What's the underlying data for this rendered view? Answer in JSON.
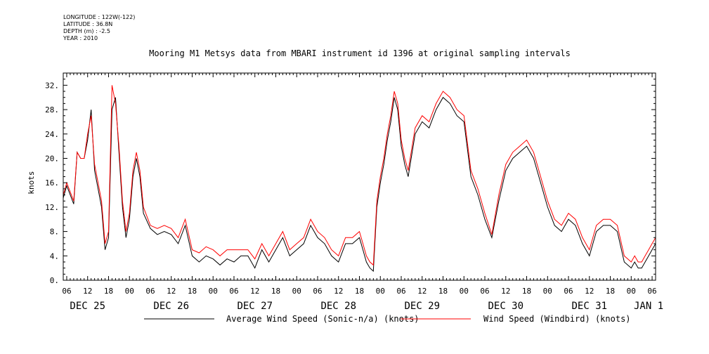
{
  "meta": {
    "longitude": "LONGITUDE : 122W(-122)",
    "latitude": "LATITUDE : 36.8N",
    "depth": "DEPTH (m) : -2.5",
    "year": "YEAR : 2010"
  },
  "chart_data": {
    "type": "line",
    "title": "Mooring M1 Metsys data from MBARI instrument id 1396 at original sampling intervals",
    "xlabel": "",
    "ylabel": "knots",
    "ylim": [
      0,
      34
    ],
    "yticks": [
      "0.",
      "4.",
      "8.",
      "12.",
      "16.",
      "20.",
      "24.",
      "28.",
      "32."
    ],
    "hour_ticks": [
      "06",
      "12",
      "18",
      "00",
      "06",
      "12",
      "18",
      "00",
      "06",
      "12",
      "18",
      "00",
      "06",
      "12",
      "18",
      "00",
      "06",
      "12",
      "18",
      "00",
      "06",
      "12",
      "18",
      "00",
      "06",
      "12",
      "18",
      "00",
      "06"
    ],
    "day_labels": [
      "DEC 25",
      "DEC 26",
      "DEC 27",
      "DEC 28",
      "DEC 29",
      "DEC 30",
      "DEC 31",
      "JAN 1"
    ],
    "x_units": "hours since 2010-12-25 00:00",
    "xlim": [
      5,
      175
    ],
    "grid": false,
    "series": [
      {
        "name": "Average Wind Speed (Sonic-n/a) (knots)",
        "color": "#000000",
        "x": [
          5,
          6,
          8,
          9,
          10,
          11,
          12,
          13,
          14,
          15,
          16,
          17,
          18,
          19,
          20,
          21,
          22,
          23,
          24,
          25,
          26,
          27,
          28,
          30,
          32,
          34,
          36,
          38,
          40,
          42,
          44,
          46,
          48,
          50,
          52,
          54,
          56,
          58,
          60,
          62,
          64,
          66,
          68,
          70,
          72,
          74,
          76,
          78,
          80,
          82,
          84,
          86,
          88,
          90,
          91,
          92,
          93,
          94,
          95,
          96,
          97,
          98,
          99,
          100,
          101,
          102,
          103,
          104,
          106,
          108,
          110,
          112,
          114,
          116,
          118,
          120,
          122,
          124,
          126,
          128,
          130,
          132,
          134,
          136,
          138,
          140,
          142,
          144,
          146,
          148,
          150,
          152,
          154,
          156,
          158,
          160,
          162,
          164,
          166,
          168,
          169,
          170,
          171,
          172,
          173,
          174,
          175
        ],
        "values": [
          13.5,
          15.5,
          12.5,
          21,
          20,
          20,
          23,
          28,
          18,
          15,
          12,
          5,
          7,
          28,
          30,
          21,
          12,
          7,
          10,
          17,
          20,
          17,
          11,
          8.5,
          7.5,
          8,
          7.5,
          6,
          9,
          4,
          3,
          4,
          3.5,
          2.5,
          3.5,
          3,
          4,
          4,
          2,
          5,
          3,
          5,
          7,
          4,
          5,
          6,
          9,
          7,
          6,
          4,
          3,
          6,
          6,
          7,
          5,
          3,
          2,
          1.5,
          12,
          16,
          19,
          23,
          26,
          30,
          28,
          22,
          19,
          17,
          24,
          26,
          25,
          28,
          30,
          29,
          27,
          26,
          17,
          14,
          10,
          7,
          13,
          18,
          20,
          21,
          22,
          20,
          16,
          12,
          9,
          8,
          10,
          9,
          6,
          4,
          8,
          9,
          9,
          8,
          3,
          2,
          3,
          2,
          2,
          3,
          4,
          5,
          6
        ]
      },
      {
        "name": "Wind Speed (Windbird) (knots)",
        "color": "#ff0000",
        "x": [
          5,
          6,
          8,
          9,
          10,
          11,
          12,
          13,
          14,
          15,
          16,
          17,
          18,
          19,
          20,
          21,
          22,
          23,
          24,
          25,
          26,
          27,
          28,
          30,
          32,
          34,
          36,
          38,
          40,
          42,
          44,
          46,
          48,
          50,
          52,
          54,
          56,
          58,
          60,
          62,
          64,
          66,
          68,
          70,
          72,
          74,
          76,
          78,
          80,
          82,
          84,
          86,
          88,
          90,
          91,
          92,
          93,
          94,
          95,
          96,
          97,
          98,
          99,
          100,
          101,
          102,
          103,
          104,
          106,
          108,
          110,
          112,
          114,
          116,
          118,
          120,
          122,
          124,
          126,
          128,
          130,
          132,
          134,
          136,
          138,
          140,
          142,
          144,
          146,
          148,
          150,
          152,
          154,
          156,
          158,
          160,
          162,
          164,
          166,
          168,
          169,
          170,
          171,
          172,
          173,
          174,
          175
        ],
        "values": [
          14,
          16,
          13,
          21,
          20,
          20,
          24,
          27,
          19,
          16,
          13,
          6,
          8,
          32,
          29,
          22,
          13,
          8,
          11,
          18,
          21,
          18,
          12,
          9,
          8.5,
          9,
          8.5,
          7,
          10,
          5,
          4.5,
          5.5,
          5,
          4,
          5,
          5,
          5,
          5,
          3.5,
          6,
          4,
          6,
          8,
          5,
          6,
          7,
          10,
          8,
          7,
          5,
          4,
          7,
          7,
          8,
          6,
          4,
          3,
          2.5,
          13,
          17,
          20,
          24,
          27,
          31,
          29,
          23,
          20,
          18,
          25,
          27,
          26,
          29,
          31,
          30,
          28,
          27,
          18,
          15,
          11,
          7.5,
          14,
          19,
          21,
          22,
          23,
          21,
          17,
          13,
          10,
          9,
          11,
          10,
          7,
          5,
          9,
          10,
          10,
          9,
          4,
          3,
          4,
          3,
          3,
          4,
          5,
          6,
          7
        ]
      }
    ],
    "legend": [
      {
        "label": "Average Wind Speed (Sonic-n/a) (knots)",
        "color": "#000000"
      },
      {
        "label": "Wind Speed (Windbird) (knots)",
        "color": "#ff0000"
      }
    ],
    "legend_position": "bottom"
  }
}
